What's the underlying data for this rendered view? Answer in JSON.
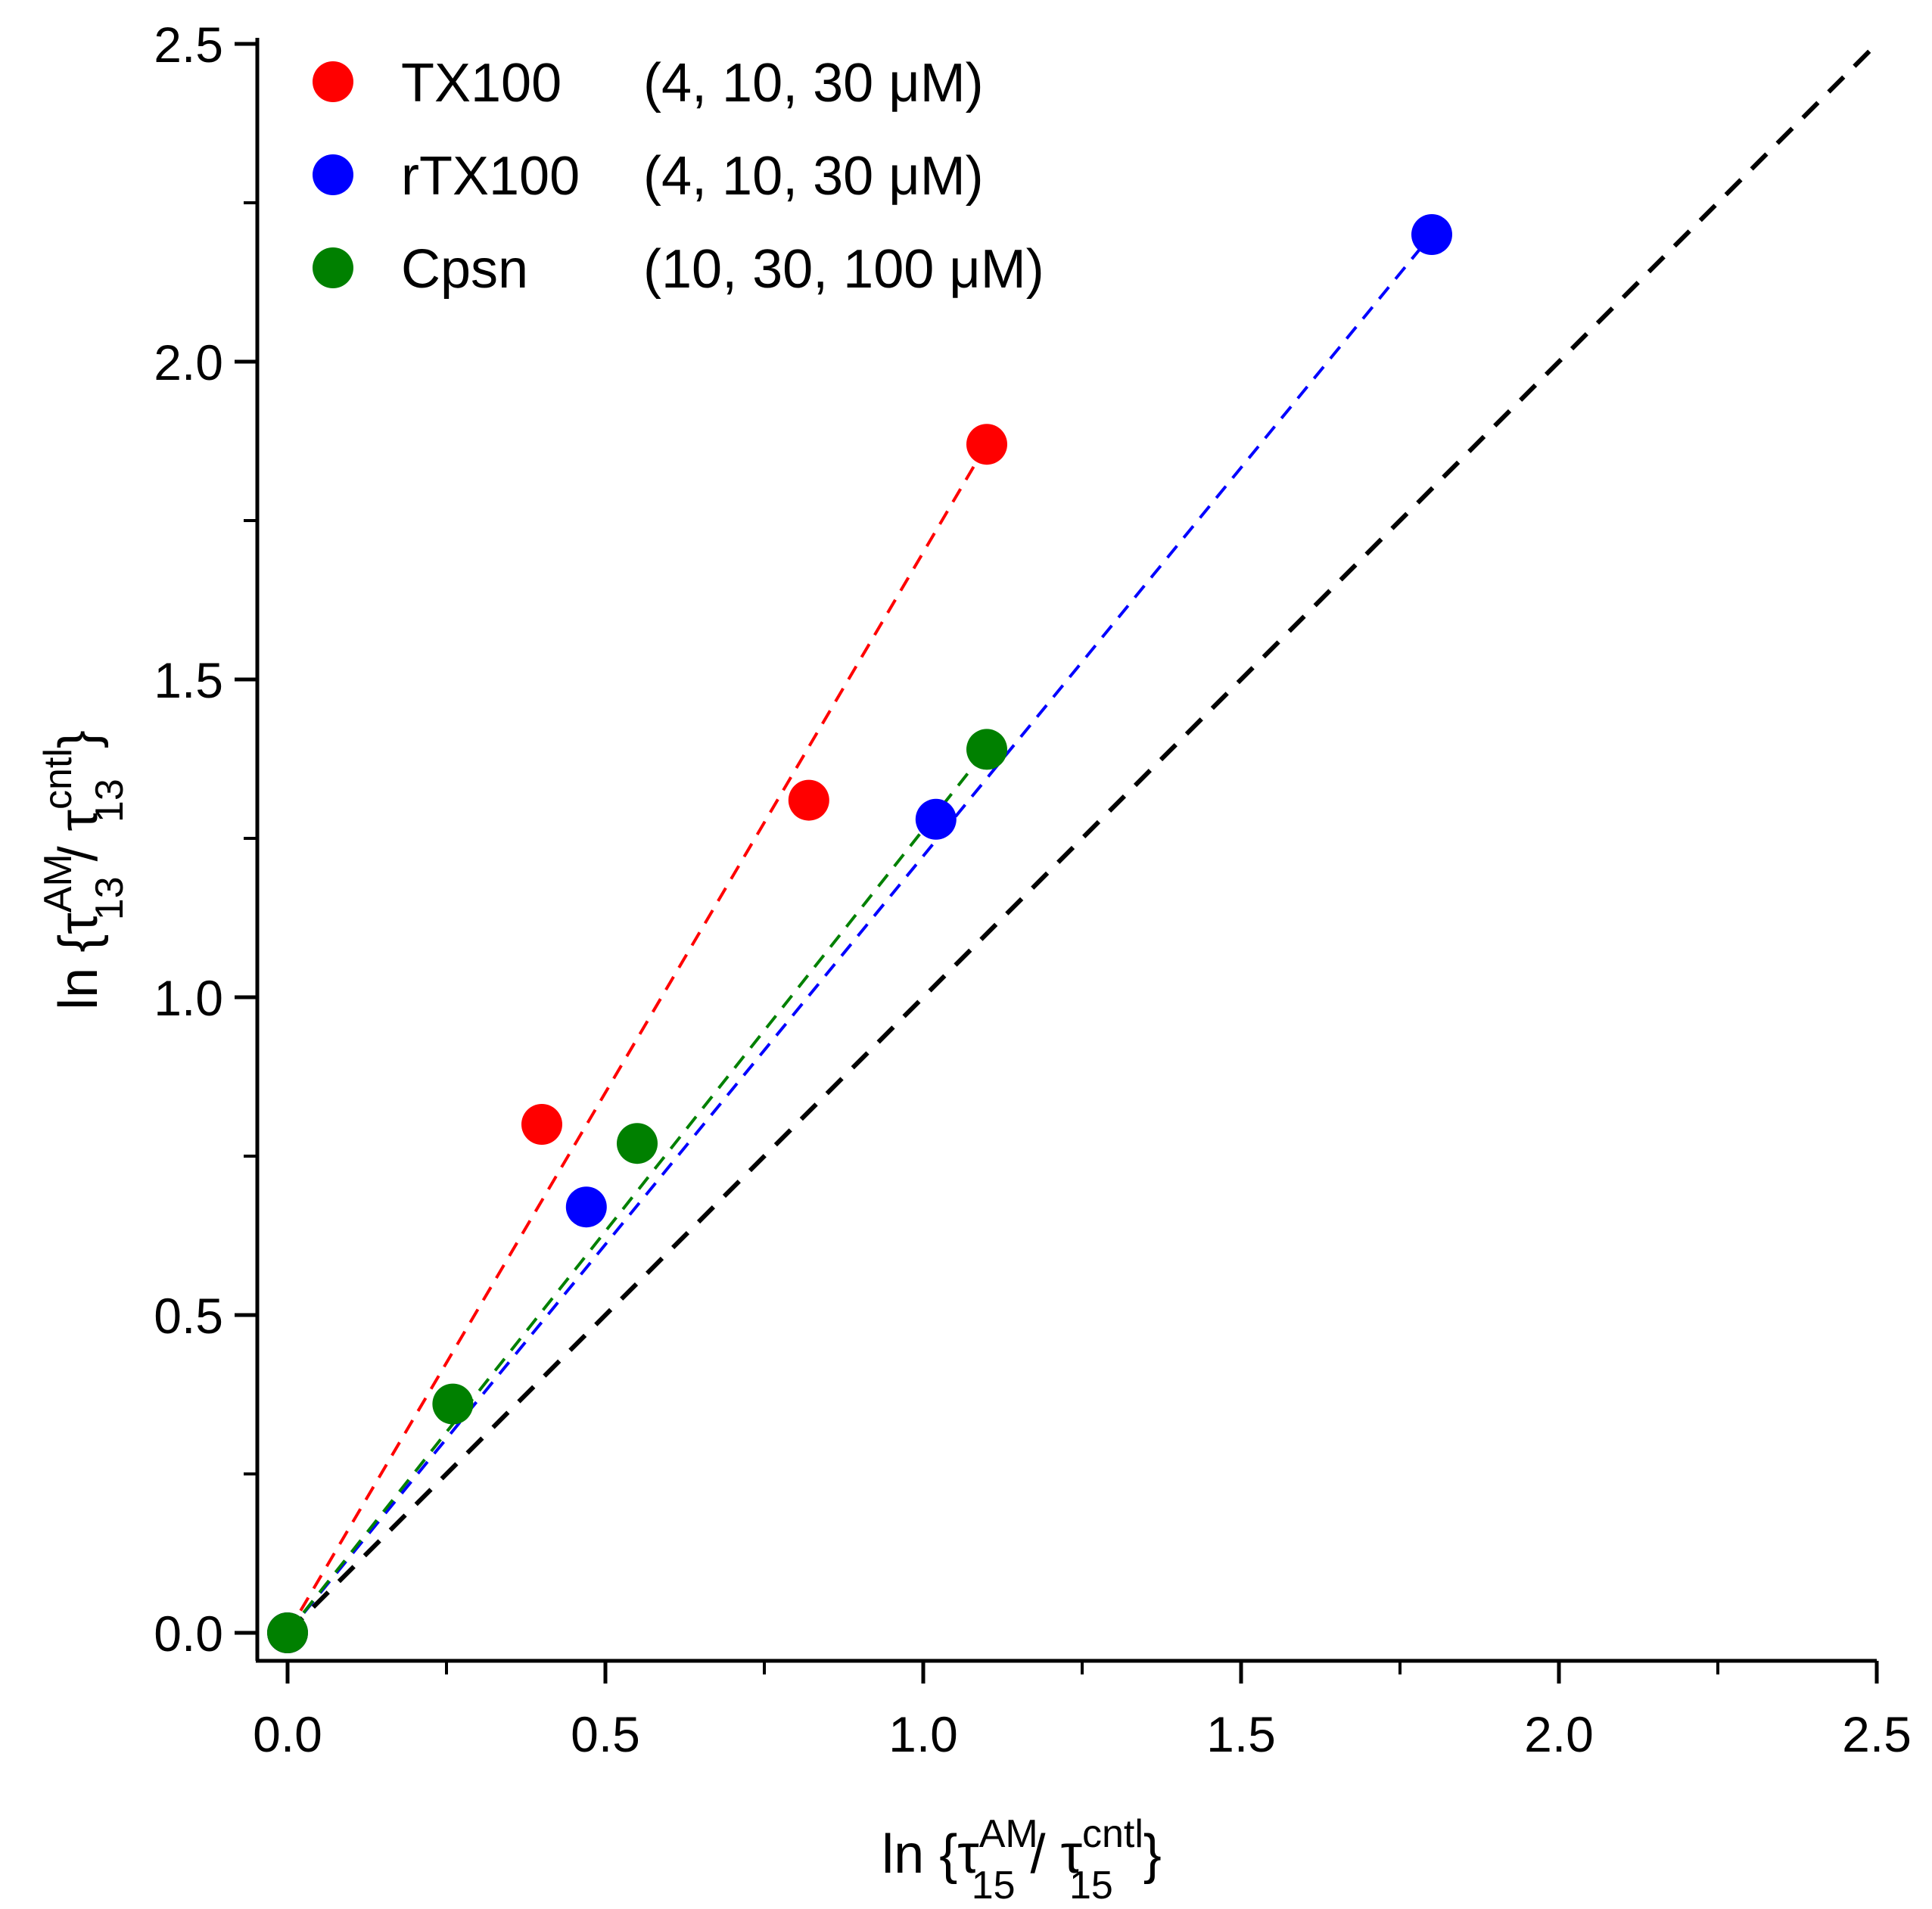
{
  "chart_data": {
    "type": "scatter",
    "title": "",
    "xlabel": {
      "prefix": "ln {",
      "num_sym": "τ",
      "num_sup": "AM",
      "num_sub": "15",
      "sep": " / ",
      "den_sym": "τ",
      "den_sup": "cntl",
      "den_sub": "15",
      "suffix": "}"
    },
    "ylabel": {
      "prefix": "ln {",
      "num_sym": "τ",
      "num_sup": "AM",
      "num_sub": "13",
      "sep": " / ",
      "den_sym": "τ",
      "den_sup": "cntl",
      "den_sub": "13",
      "suffix": "}"
    },
    "xlim": [
      -0.05,
      2.5
    ],
    "ylim": [
      -0.05,
      2.5
    ],
    "xticks": [
      0.0,
      0.5,
      1.0,
      1.5,
      2.0,
      2.5
    ],
    "yticks": [
      0.0,
      0.5,
      1.0,
      1.5,
      2.0,
      2.5
    ],
    "xtick_labels": [
      "0.0",
      "0.5",
      "1.0",
      "1.5",
      "2.0",
      "2.5"
    ],
    "ytick_labels": [
      "0.0",
      "0.5",
      "1.0",
      "1.5",
      "2.0",
      "2.5"
    ],
    "grid": false,
    "legend_position": "top-left",
    "series": [
      {
        "name": "TX100",
        "label_name": "TX100",
        "label_conc": "(4, 10, 30 μM)",
        "color": "#ff0000",
        "x": [
          0.0,
          0.4,
          0.82,
          1.1
        ],
        "y": [
          0.0,
          0.8,
          1.31,
          1.87
        ],
        "fit": {
          "x0": 0.0,
          "y0": 0.0,
          "x1": 1.1,
          "y1": 1.87
        }
      },
      {
        "name": "rTX100",
        "label_name": " rTX100",
        "label_conc": "(4, 10, 30 μM)",
        "color": "#0000ff",
        "x": [
          0.0,
          0.47,
          1.02,
          1.8
        ],
        "y": [
          0.0,
          0.67,
          1.28,
          2.2
        ],
        "fit": {
          "x0": 0.0,
          "y0": 0.0,
          "x1": 1.8,
          "y1": 2.2
        }
      },
      {
        "name": "Cpsn",
        "label_name": "Cpsn",
        "label_conc": "(10, 30, 100 μM)",
        "color": "#008000",
        "x": [
          0.0,
          0.26,
          0.55,
          1.1
        ],
        "y": [
          0.0,
          0.36,
          0.77,
          1.39
        ],
        "fit": {
          "x0": 0.0,
          "y0": 0.0,
          "x1": 1.1,
          "y1": 1.39
        }
      }
    ],
    "reference_line": {
      "name": "identity",
      "color": "#000000",
      "x0": 0.0,
      "y0": 0.0,
      "x1": 2.5,
      "y1": 2.5
    }
  }
}
